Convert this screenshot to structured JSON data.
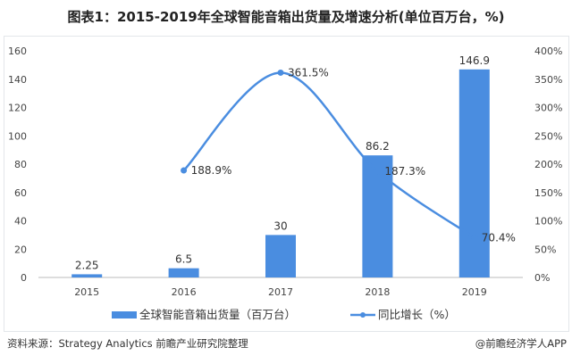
{
  "chart_data": {
    "type": "bar+line",
    "title": "图表1：2015-2019年全球智能音箱出货量及增速分析(单位百万台，%)",
    "categories": [
      "2015",
      "2016",
      "2017",
      "2018",
      "2019"
    ],
    "series": [
      {
        "name": "全球智能音箱出货量（百万台）",
        "type": "bar",
        "axis": "left",
        "values": [
          2.25,
          6.5,
          30,
          86.2,
          146.9
        ],
        "labels": [
          "2.25",
          "6.5",
          "30",
          "86.2",
          "146.9"
        ],
        "color": "#4a8de0"
      },
      {
        "name": "同比增长（%）",
        "type": "line",
        "axis": "right",
        "values": [
          null,
          188.9,
          361.5,
          187.3,
          70.4
        ],
        "labels": [
          "",
          "188.9%",
          "361.5%",
          "187.3%",
          "70.4%"
        ],
        "color": "#4a8de0"
      }
    ],
    "left_axis": {
      "ylim": [
        0,
        160
      ],
      "ticks": [
        "0",
        "20",
        "40",
        "60",
        "80",
        "100",
        "120",
        "140",
        "160"
      ]
    },
    "right_axis": {
      "ylim": [
        0,
        400
      ],
      "ticks": [
        "0%",
        "50%",
        "100%",
        "150%",
        "200%",
        "250%",
        "300%",
        "350%",
        "400%"
      ]
    },
    "legend": "bottom"
  },
  "footer": {
    "source": "资料来源：Strategy Analytics 前瞻产业研究院整理",
    "credit": "@前瞻经济学人APP"
  }
}
